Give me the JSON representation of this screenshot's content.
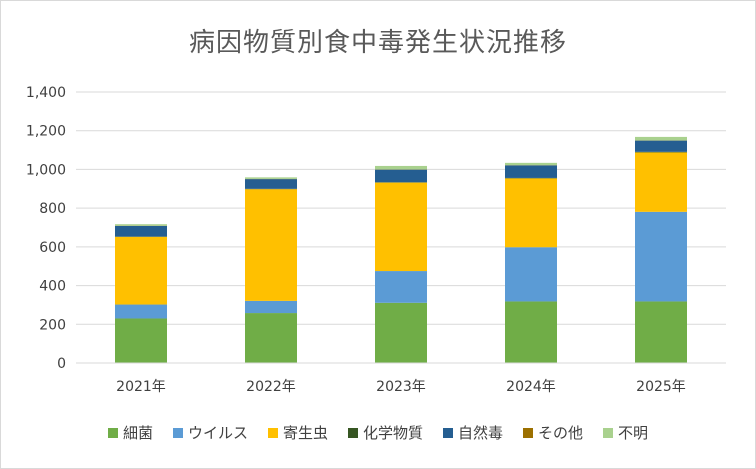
{
  "chart_data": {
    "type": "bar",
    "stacked": true,
    "title": "病因物質別食中毒発生状況推移",
    "xlabel": "",
    "ylabel": "",
    "categories": [
      "2021年",
      "2022年",
      "2023年",
      "2024年",
      "2025年"
    ],
    "ylim": [
      0,
      1400
    ],
    "yticks": [
      0,
      200,
      400,
      600,
      800,
      1000,
      1200,
      1400
    ],
    "ytick_labels": [
      "0",
      "200",
      "400",
      "600",
      "800",
      "1,000",
      "1,200",
      "1,400"
    ],
    "grid": true,
    "legend_position": "bottom",
    "series": [
      {
        "name": "細菌",
        "color": "#70ad47",
        "values": [
          230,
          258,
          311,
          318,
          318
        ]
      },
      {
        "name": "ウイルス",
        "color": "#5b9bd5",
        "values": [
          72,
          63,
          164,
          280,
          463
        ]
      },
      {
        "name": "寄生虫",
        "color": "#ffc000",
        "values": [
          350,
          577,
          457,
          356,
          307
        ]
      },
      {
        "name": "化学物質",
        "color": "#375623",
        "values": [
          1,
          2,
          2,
          2,
          3
        ]
      },
      {
        "name": "自然毒",
        "color": "#255e91",
        "values": [
          55,
          50,
          65,
          65,
          58
        ]
      },
      {
        "name": "その他",
        "color": "#9c7000",
        "values": [
          1,
          1,
          1,
          1,
          1
        ]
      },
      {
        "name": "不明",
        "color": "#a9d18e",
        "values": [
          8,
          8,
          18,
          12,
          18
        ]
      }
    ]
  }
}
